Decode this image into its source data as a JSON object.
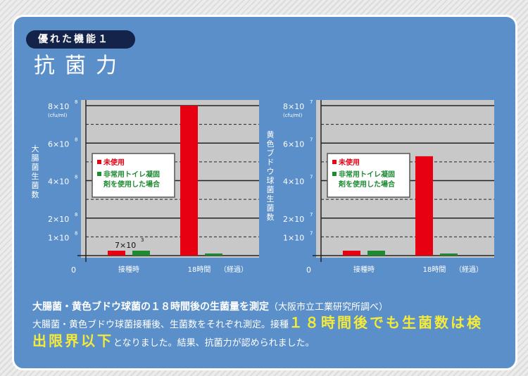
{
  "header": {
    "badge": "優れた機能１",
    "title": "抗菌力"
  },
  "colors": {
    "panel": "#5b8fc9",
    "untreated": "#e60012",
    "treated": "#1e8a32",
    "plot_bg": "#c8c8c8",
    "highlight": "#f5ea3a"
  },
  "chart_data": [
    {
      "type": "bar",
      "ylabel": "大腸菌生菌数",
      "unit": "(cfu/ml)",
      "exponent": "8",
      "ylim": [
        0,
        8
      ],
      "yticks": [
        "8",
        "6",
        "4",
        "2",
        "1"
      ],
      "zero_label": "0",
      "categories": [
        "接種時",
        "18時間"
      ],
      "xsuffix": "（経過）",
      "legend": [
        "未使用",
        "非常用トイレ凝固剤を使用した場合"
      ],
      "legend_lines": [
        "未使用",
        "非常用トイレ凝固",
        "剤を使用した場合"
      ],
      "series": [
        {
          "name": "未使用",
          "values": [
            7e-05,
            8
          ]
        },
        {
          "name": "非常用トイレ凝固剤を使用した場合",
          "values": [
            7e-05,
            0
          ]
        }
      ],
      "annotation": {
        "base": "7×10",
        "exp": "3"
      },
      "grid": true
    },
    {
      "type": "bar",
      "ylabel": "黄色ブドウ球菌生菌数",
      "unit": "(cfu/ml)",
      "exponent": "7",
      "ylim": [
        0,
        8
      ],
      "yticks": [
        "8",
        "6",
        "4",
        "2",
        "1"
      ],
      "zero_label": "0",
      "categories": [
        "接種時",
        "18時間"
      ],
      "xsuffix": "（経過）",
      "legend": [
        "未使用",
        "非常用トイレ凝固剤を使用した場合"
      ],
      "legend_lines": [
        "未使用",
        "非常用トイレ凝固",
        "剤を使用した場合"
      ],
      "series": [
        {
          "name": "未使用",
          "values": [
            0.0007,
            5.3
          ]
        },
        {
          "name": "非常用トイレ凝固剤を使用した場合",
          "values": [
            0.0007,
            0
          ]
        }
      ],
      "grid": true
    }
  ],
  "description": {
    "heading": "大腸菌・黄色ブドウ球菌の１８時間後の生菌量を測定",
    "source": "（大阪市立工業研究所調べ）",
    "body_start": "大腸菌・黄色ブドウ球菌接種後、生菌数をそれぞれ測定。接種",
    "highlight": "１８時間後でも生菌数は検出限界以下",
    "body_end": "となりました。結果、抗菌力が認められました。"
  }
}
